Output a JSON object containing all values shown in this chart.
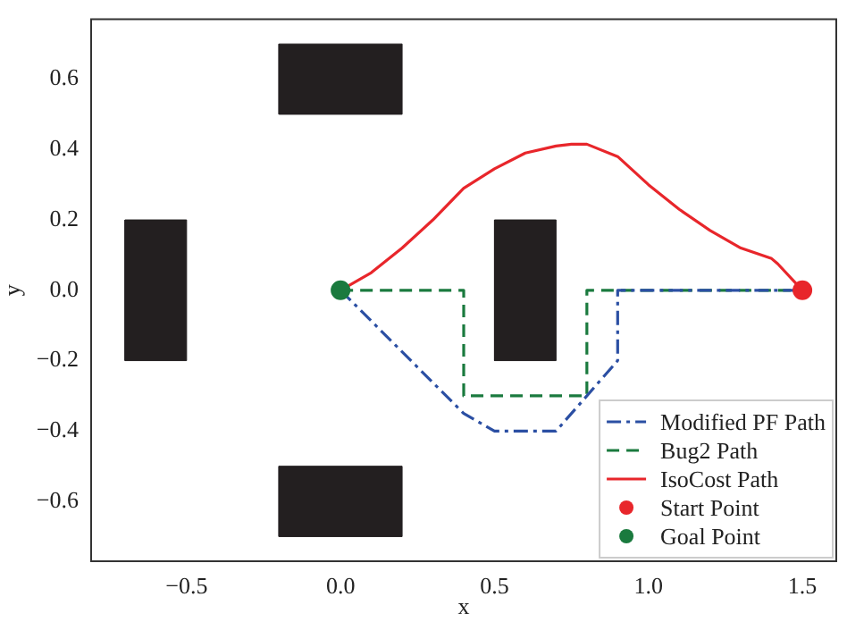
{
  "chart_data": {
    "type": "line",
    "xlabel": "x",
    "ylabel": "y",
    "xlim": [
      -0.81,
      1.61
    ],
    "ylim": [
      -0.77,
      0.77
    ],
    "xticks": [
      -0.5,
      {
        "value": 0,
        "label": "0.0"
      },
      0.5,
      {
        "value": 1,
        "label": "1.0"
      },
      1.5
    ],
    "yticks": [
      -0.6,
      -0.4,
      -0.2,
      {
        "value": 0,
        "label": "0.0"
      },
      0.2,
      0.4,
      0.6
    ],
    "grid": false,
    "legend": "bottom right",
    "series": [
      {
        "type": "area",
        "color": "#231f20",
        "x": [
          -0.2,
          0.2,
          0.2,
          -0.2,
          -0.2
        ],
        "values": [
          0.5,
          0.5,
          0.7,
          0.7,
          0.5
        ]
      },
      {
        "type": "area",
        "color": "#231f20",
        "x": [
          -0.2,
          0.2,
          0.2,
          -0.2,
          -0.2
        ],
        "values": [
          -0.7,
          -0.7,
          -0.5,
          -0.5,
          -0.7
        ]
      },
      {
        "type": "area",
        "color": "#231f20",
        "x": [
          -0.7,
          -0.5,
          -0.5,
          -0.7,
          -0.7
        ],
        "values": [
          -0.2,
          -0.2,
          0.2,
          0.2,
          -0.2
        ]
      },
      {
        "type": "area",
        "color": "#231f20",
        "x": [
          0.5,
          0.7,
          0.7,
          0.5,
          0.5
        ],
        "values": [
          -0.2,
          -0.2,
          0.2,
          0.2,
          -0.2
        ]
      },
      {
        "name": "Modified PF Path",
        "color": "#2b4fa3",
        "line_style": "dashdot",
        "marker": "none",
        "x": [
          0,
          0.4,
          0.5,
          0.7,
          0.9,
          0.9,
          1.5
        ],
        "values": [
          0,
          -0.35,
          -0.4,
          -0.4,
          -0.2,
          0,
          0
        ]
      },
      {
        "name": "Bug2 Path",
        "color": "#1a7a3e",
        "line_style": "dashed",
        "marker": "none",
        "x": [
          0,
          0.4,
          0.4,
          0.8,
          0.8,
          1.5
        ],
        "values": [
          0,
          0,
          -0.3,
          -0.3,
          0,
          0
        ]
      },
      {
        "name": "IsoCost Path",
        "color": "#e8262b",
        "line_style": "solid",
        "marker": "none",
        "x": [
          1.5,
          1.42,
          1.4,
          1.3,
          1.2,
          1.1,
          1.0,
          0.9,
          0.8,
          0.75,
          0.7,
          0.6,
          0.5,
          0.4,
          0.3,
          0.2,
          0.1,
          0
        ],
        "values": [
          0,
          0.075,
          0.09,
          0.12,
          0.17,
          0.23,
          0.3,
          0.38,
          0.415,
          0.415,
          0.41,
          0.39,
          0.345,
          0.29,
          0.2,
          0.12,
          0.05,
          0
        ]
      },
      {
        "type": "scatter",
        "name": "Start Point",
        "color": "#e8262b",
        "marker": "circle",
        "x": [
          1.5
        ],
        "values": [
          0
        ]
      },
      {
        "type": "scatter",
        "name": "Goal Point",
        "color": "#1a7a3e",
        "marker": "circle",
        "x": [
          0
        ],
        "values": [
          0
        ]
      }
    ]
  }
}
